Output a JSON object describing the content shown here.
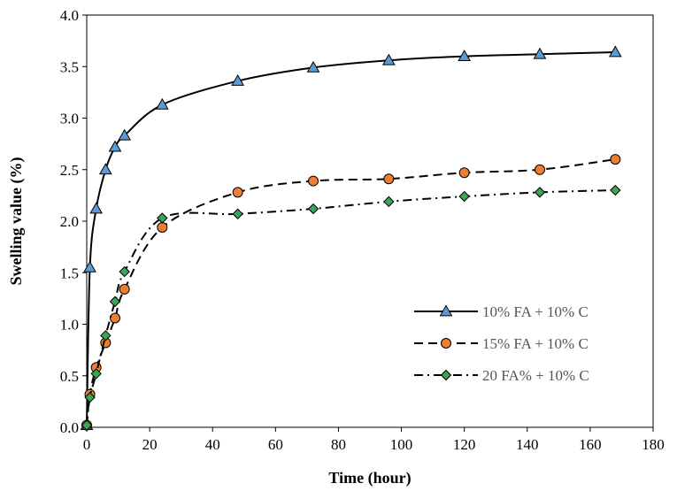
{
  "chart_data": {
    "type": "line",
    "title": "",
    "xlabel": "Time (hour)",
    "ylabel": "Swelling value (%)",
    "xlim": [
      0,
      180
    ],
    "ylim": [
      0,
      4.0
    ],
    "x_ticks": [
      "0",
      "20",
      "40",
      "60",
      "80",
      "100",
      "120",
      "140",
      "160",
      "180"
    ],
    "y_ticks": [
      "0.0",
      "0.5",
      "1.0",
      "1.5",
      "2.0",
      "2.5",
      "3.0",
      "3.5",
      "4.0"
    ],
    "grid": false,
    "legend_position": "center-right",
    "series": [
      {
        "name": "10% FA + 10% C",
        "line_style": "solid",
        "marker": "triangle",
        "marker_color": "#5b9bd5",
        "x": [
          0,
          1,
          3,
          6,
          9,
          12,
          24,
          48,
          72,
          96,
          120,
          144,
          168
        ],
        "y": [
          0.02,
          1.55,
          2.12,
          2.5,
          2.72,
          2.83,
          3.13,
          3.36,
          3.49,
          3.56,
          3.6,
          3.62,
          3.64
        ]
      },
      {
        "name": "15% FA + 10% C",
        "line_style": "dashed",
        "marker": "circle",
        "marker_color": "#ed7d31",
        "x": [
          0,
          1,
          3,
          6,
          9,
          12,
          24,
          48,
          72,
          96,
          120,
          144,
          168
        ],
        "y": [
          0.02,
          0.32,
          0.58,
          0.82,
          1.06,
          1.34,
          1.94,
          2.28,
          2.39,
          2.41,
          2.47,
          2.5,
          2.6
        ]
      },
      {
        "name": "20 FA% + 10% C",
        "line_style": "dashdot",
        "marker": "diamond",
        "marker_color": "#3aa655",
        "x": [
          0,
          1,
          3,
          6,
          9,
          12,
          24,
          48,
          72,
          96,
          120,
          144,
          168
        ],
        "y": [
          0.02,
          0.29,
          0.52,
          0.89,
          1.22,
          1.51,
          2.03,
          2.07,
          2.12,
          2.19,
          2.24,
          2.28,
          2.3
        ]
      }
    ]
  }
}
